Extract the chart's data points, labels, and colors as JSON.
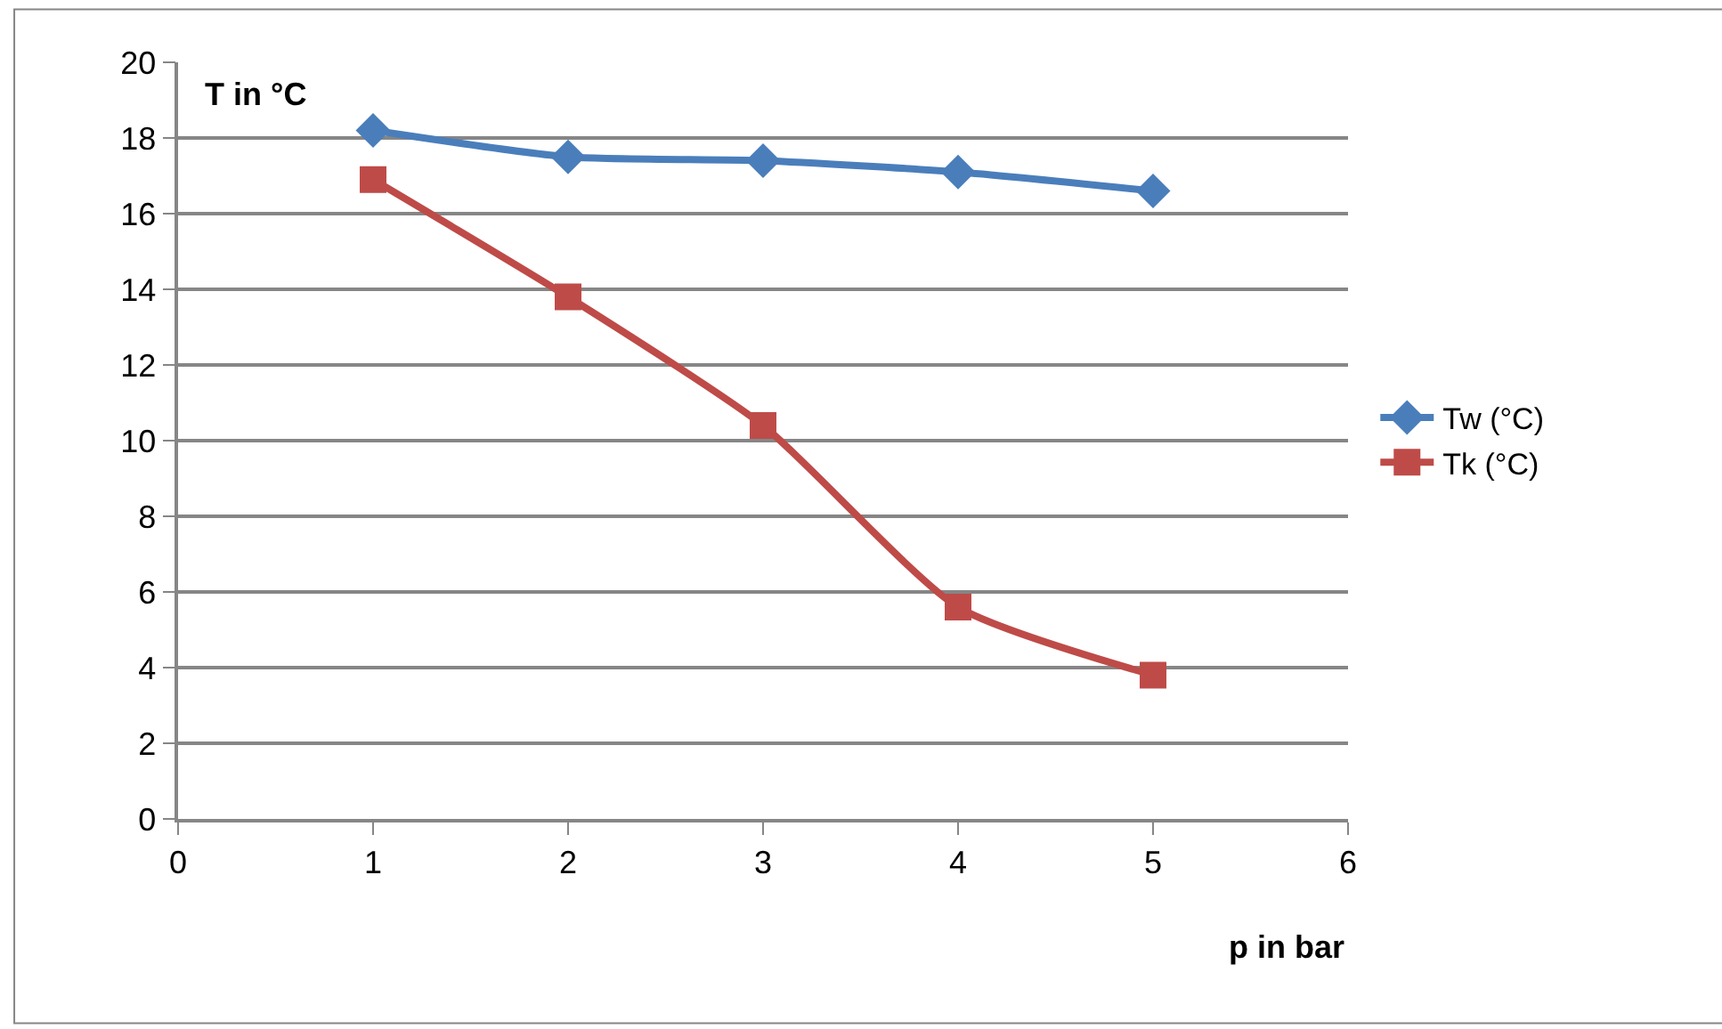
{
  "chart_data": {
    "type": "line",
    "xlabel": "p in bar",
    "ylabel": "T in °C",
    "x": [
      1,
      2,
      3,
      4,
      5
    ],
    "series": [
      {
        "name": "Tw (°C)",
        "color": "#4a7ebb",
        "marker": "diamond",
        "values": [
          18.2,
          17.5,
          17.4,
          17.1,
          16.6
        ]
      },
      {
        "name": "Tk (°C)",
        "color": "#be4b48",
        "marker": "square",
        "values": [
          16.9,
          13.8,
          10.4,
          5.6,
          3.8
        ]
      }
    ],
    "xlim": [
      0,
      6
    ],
    "xticks": [
      0,
      1,
      2,
      3,
      4,
      5,
      6
    ],
    "ylim": [
      0,
      20
    ],
    "yticks": [
      0,
      2,
      4,
      6,
      8,
      10,
      12,
      14,
      16,
      18,
      20
    ],
    "grid": "y",
    "legend": "right",
    "line_style": "solid"
  }
}
